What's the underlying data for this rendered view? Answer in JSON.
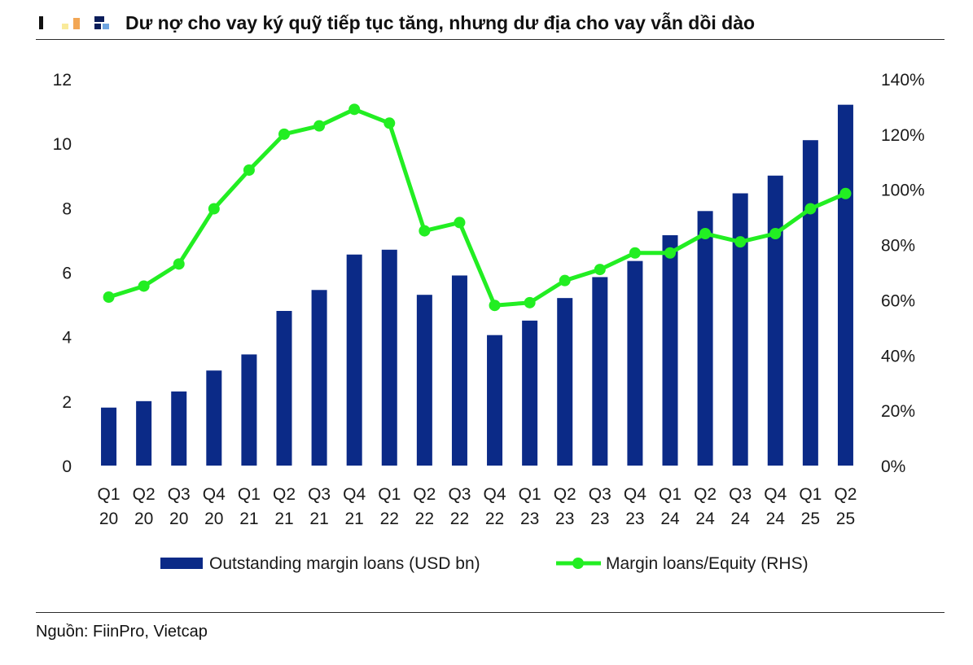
{
  "header": {
    "title": "Dư nợ cho vay ký quỹ tiếp tục tăng, nhưng dư địa cho vay vẫn dồi dào"
  },
  "footer": {
    "source": "Nguồn: FiinPro, Vietcap"
  },
  "colors": {
    "bar": "#0b2a87",
    "line": "#22ee22",
    "accent_navy": "#0b1d5a",
    "accent_orange": "#f2a654",
    "accent_blue": "#6ea4e0",
    "accent_yellow": "#f9ea9a"
  },
  "chart_data": {
    "type": "bar",
    "categories": [
      [
        "Q1",
        "20"
      ],
      [
        "Q2",
        "20"
      ],
      [
        "Q3",
        "20"
      ],
      [
        "Q4",
        "20"
      ],
      [
        "Q1",
        "21"
      ],
      [
        "Q2",
        "21"
      ],
      [
        "Q3",
        "21"
      ],
      [
        "Q4",
        "21"
      ],
      [
        "Q1",
        "22"
      ],
      [
        "Q2",
        "22"
      ],
      [
        "Q3",
        "22"
      ],
      [
        "Q4",
        "22"
      ],
      [
        "Q1",
        "23"
      ],
      [
        "Q2",
        "23"
      ],
      [
        "Q3",
        "23"
      ],
      [
        "Q4",
        "23"
      ],
      [
        "Q1",
        "24"
      ],
      [
        "Q2",
        "24"
      ],
      [
        "Q3",
        "24"
      ],
      [
        "Q4",
        "24"
      ],
      [
        "Q1",
        "25"
      ],
      [
        "Q2",
        "25"
      ]
    ],
    "series": [
      {
        "name": "Outstanding margin loans (USD bn)",
        "type": "bar",
        "axis": "left",
        "values": [
          1.8,
          2.0,
          2.3,
          2.95,
          3.45,
          4.8,
          5.45,
          6.55,
          6.7,
          5.3,
          5.9,
          4.05,
          4.5,
          5.2,
          5.85,
          6.35,
          7.15,
          7.9,
          8.45,
          9.0,
          10.1,
          11.2
        ]
      },
      {
        "name": "Margin loans/Equity (RHS)",
        "type": "line",
        "axis": "right",
        "values": [
          61,
          65,
          73,
          93,
          107,
          120,
          123,
          129,
          124,
          85,
          88,
          58,
          59,
          67,
          71,
          77,
          77,
          84,
          81,
          84,
          93,
          98.5
        ]
      }
    ],
    "y_left": {
      "min": 0,
      "max": 12,
      "ticks": [
        "0",
        "2",
        "4",
        "6",
        "8",
        "10",
        "12"
      ]
    },
    "y_right": {
      "min": 0,
      "max": 140,
      "ticks": [
        "0%",
        "20%",
        "40%",
        "60%",
        "80%",
        "100%",
        "120%",
        "140%"
      ]
    },
    "grid": false,
    "legend": "bottom"
  }
}
